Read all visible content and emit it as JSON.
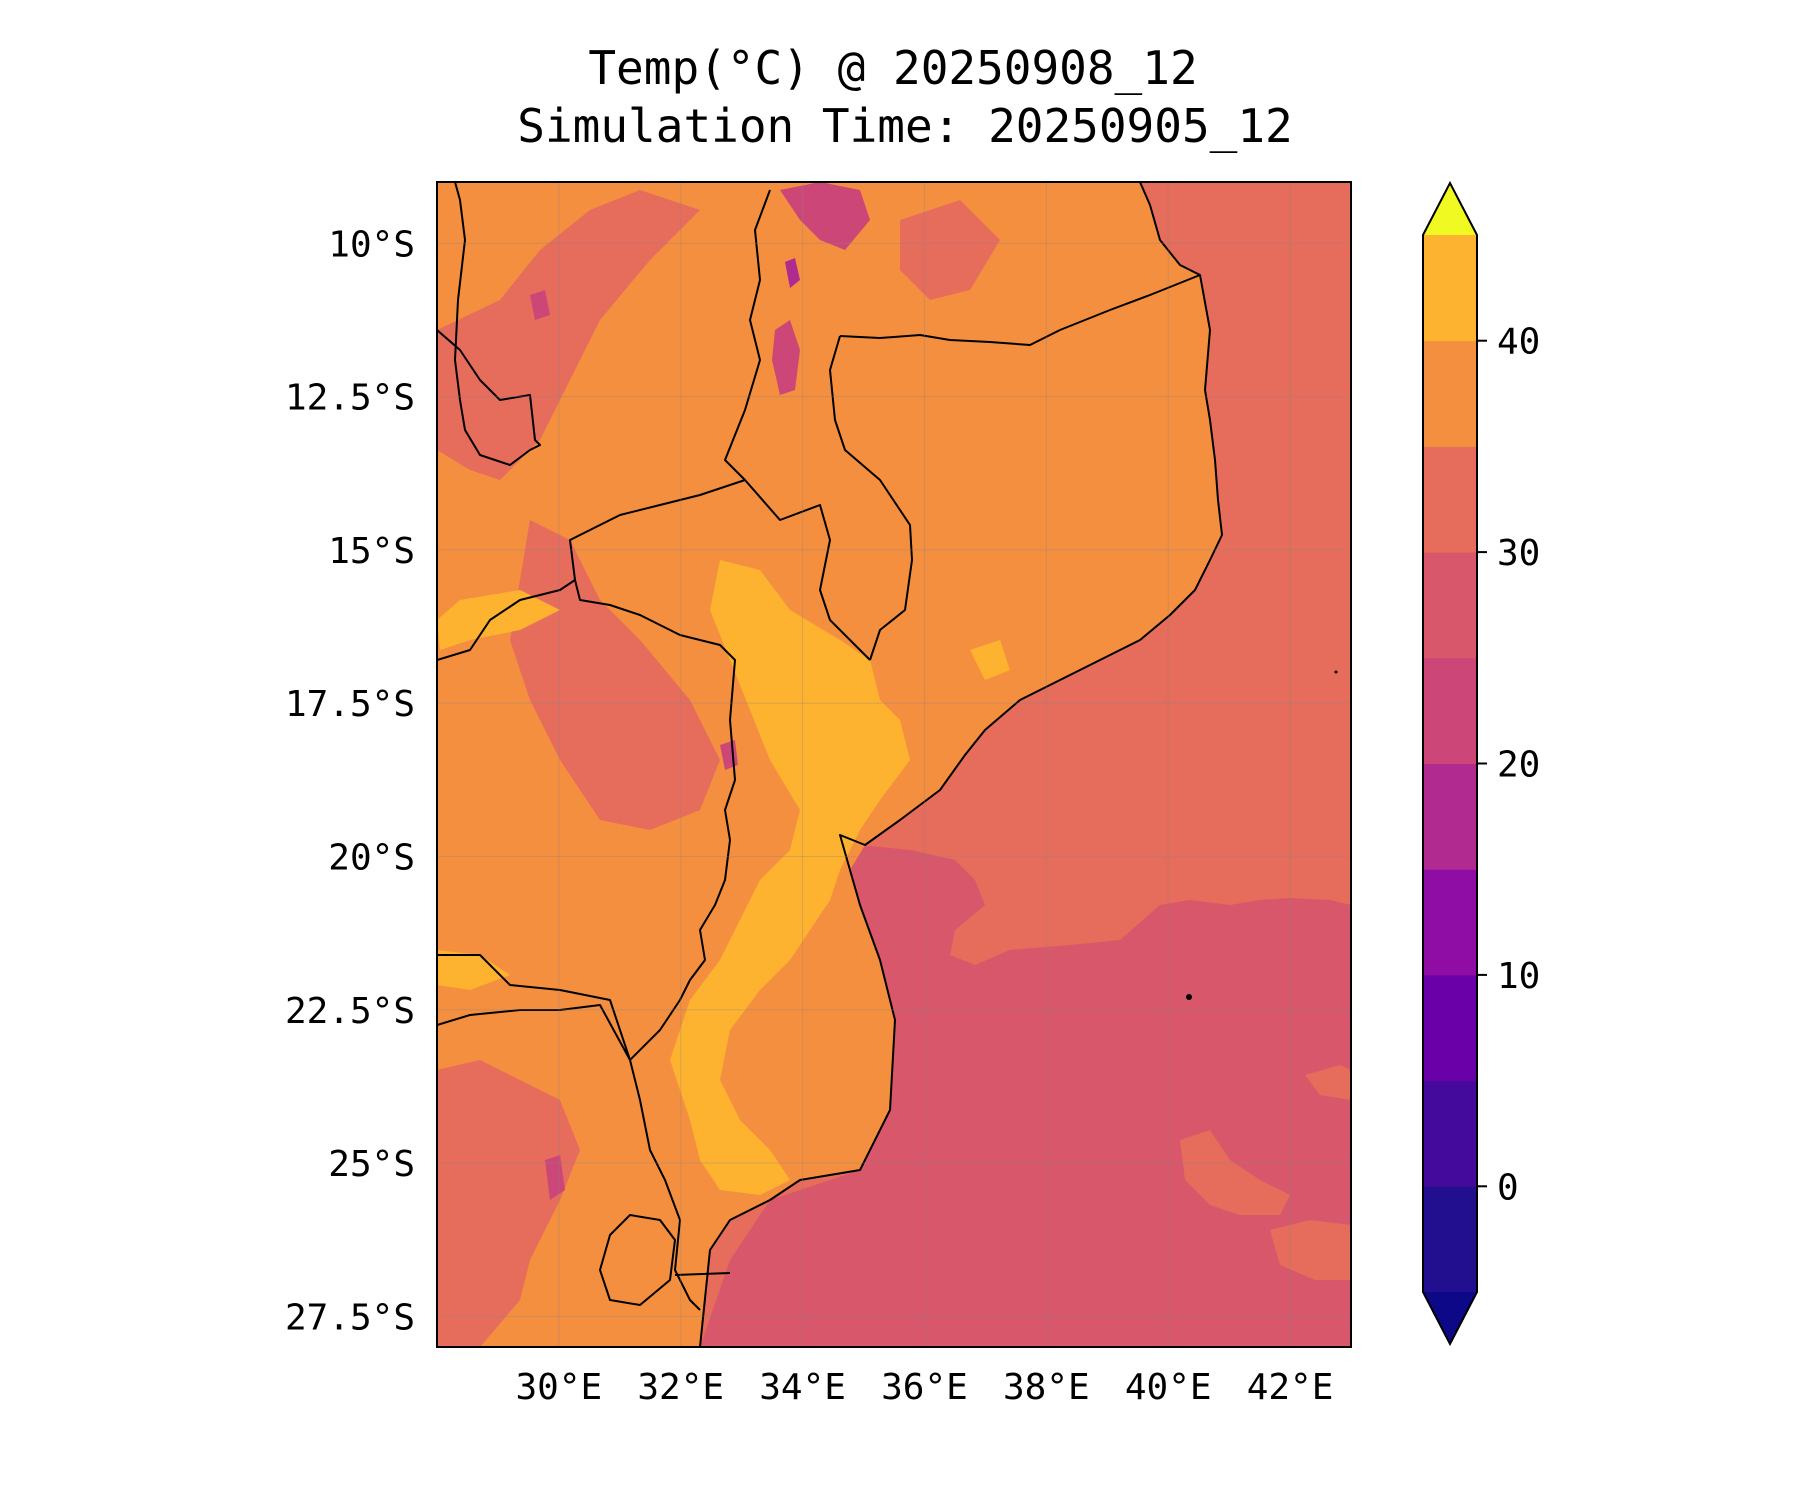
{
  "title": {
    "line1": "Temp(°C) @ 20250908_12",
    "line2": "Simulation Time: 20250905_12"
  },
  "map": {
    "region": "Mozambique / South-East Africa",
    "extent": {
      "lon_min": 28.0,
      "lon_max": 43.0,
      "lat_min": -28.0,
      "lat_max": -9.0
    },
    "x_ticks": [
      {
        "value": 30,
        "label": "30°E"
      },
      {
        "value": 32,
        "label": "32°E"
      },
      {
        "value": 34,
        "label": "34°E"
      },
      {
        "value": 36,
        "label": "36°E"
      },
      {
        "value": 38,
        "label": "38°E"
      },
      {
        "value": 40,
        "label": "40°E"
      },
      {
        "value": 42,
        "label": "42°E"
      }
    ],
    "y_ticks": [
      {
        "value": -10,
        "label": "10°S"
      },
      {
        "value": -12.5,
        "label": "12.5°S"
      },
      {
        "value": -15,
        "label": "15°S"
      },
      {
        "value": -17.5,
        "label": "17.5°S"
      },
      {
        "value": -20,
        "label": "20°S"
      },
      {
        "value": -22.5,
        "label": "22.5°S"
      },
      {
        "value": -25,
        "label": "25°S"
      },
      {
        "value": -27.5,
        "label": "27.5°S"
      }
    ],
    "gridlines": true
  },
  "colorbar": {
    "levels": [
      -5,
      0,
      5,
      10,
      15,
      20,
      25,
      30,
      35,
      40,
      45
    ],
    "colors": [
      "#220f8f",
      "#440a9c",
      "#6a00a8",
      "#8f0da4",
      "#b12a90",
      "#cc4778",
      "#d8576b",
      "#e66c5c",
      "#f48f3f",
      "#fdb32f",
      "#f0e422"
    ],
    "under_color": "#0d0887",
    "over_color": "#f0f921",
    "extend": "both",
    "tick_labels": [
      {
        "value": 0,
        "label": "0"
      },
      {
        "value": 10,
        "label": "10"
      },
      {
        "value": 20,
        "label": "20"
      },
      {
        "value": 30,
        "label": "30"
      },
      {
        "value": 40,
        "label": "40"
      }
    ]
  },
  "colors": {
    "ocean_cool": "#d8576b",
    "ocean_warm": "#e66c5c",
    "land_warm": "#f48f3f",
    "land_hot": "#fdb32f",
    "highland_cool": "#cc4778",
    "border": "#000000"
  }
}
